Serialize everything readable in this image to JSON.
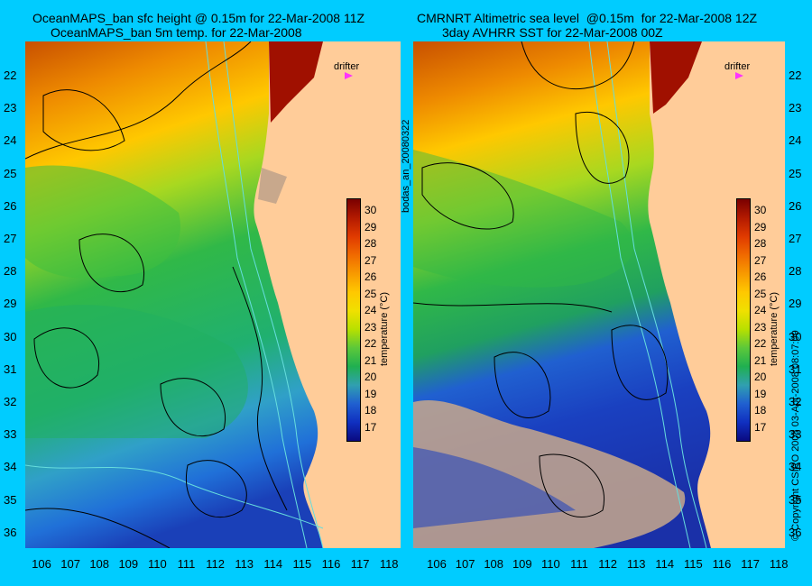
{
  "left_panel": {
    "title_line1": "OceanMAPS_ban sfc height @ 0.15m for 22-Mar-2008 11Z",
    "title_line2": "OceanMAPS_ban 5m temp. for 22-Mar-2008"
  },
  "right_panel": {
    "title_line1": "CMRNRT Altimetric sea level  @0.15m  for 22-Mar-2008 12Z",
    "title_line2": "3day AVHRR SST for 22-Mar-2008 00Z"
  },
  "latitude_ticks": [
    "22",
    "23",
    "24",
    "25",
    "26",
    "27",
    "28",
    "29",
    "30",
    "31",
    "32",
    "33",
    "34",
    "35",
    "36"
  ],
  "longitude_ticks": [
    "106",
    "107",
    "108",
    "109",
    "110",
    "111",
    "112",
    "113",
    "114",
    "115",
    "116",
    "117",
    "118"
  ],
  "colorbar": {
    "title": "temperature (°C)",
    "ticks": [
      "30",
      "29",
      "28",
      "27",
      "26",
      "25",
      "24",
      "23",
      "22",
      "21",
      "20",
      "19",
      "18",
      "17"
    ],
    "colors": [
      "#7a0000",
      "#b31a00",
      "#e03a00",
      "#f06a00",
      "#f89a00",
      "#ffc800",
      "#f0e000",
      "#b8e000",
      "#5cc83a",
      "#20b050",
      "#30a0b0",
      "#2060d0",
      "#1030c0",
      "#0a0a80"
    ]
  },
  "drifter_label": "drifter",
  "center_label": "bodas_an_20080322",
  "copyright": "© Copyright CSIRO 2008   03-Apr-2008 08:07:09",
  "colors": {
    "background": "#00ccff",
    "land": "#ffcc99",
    "contour": "#000000",
    "bathymetry": "#66dddd",
    "cloud": "#c8a88c"
  }
}
